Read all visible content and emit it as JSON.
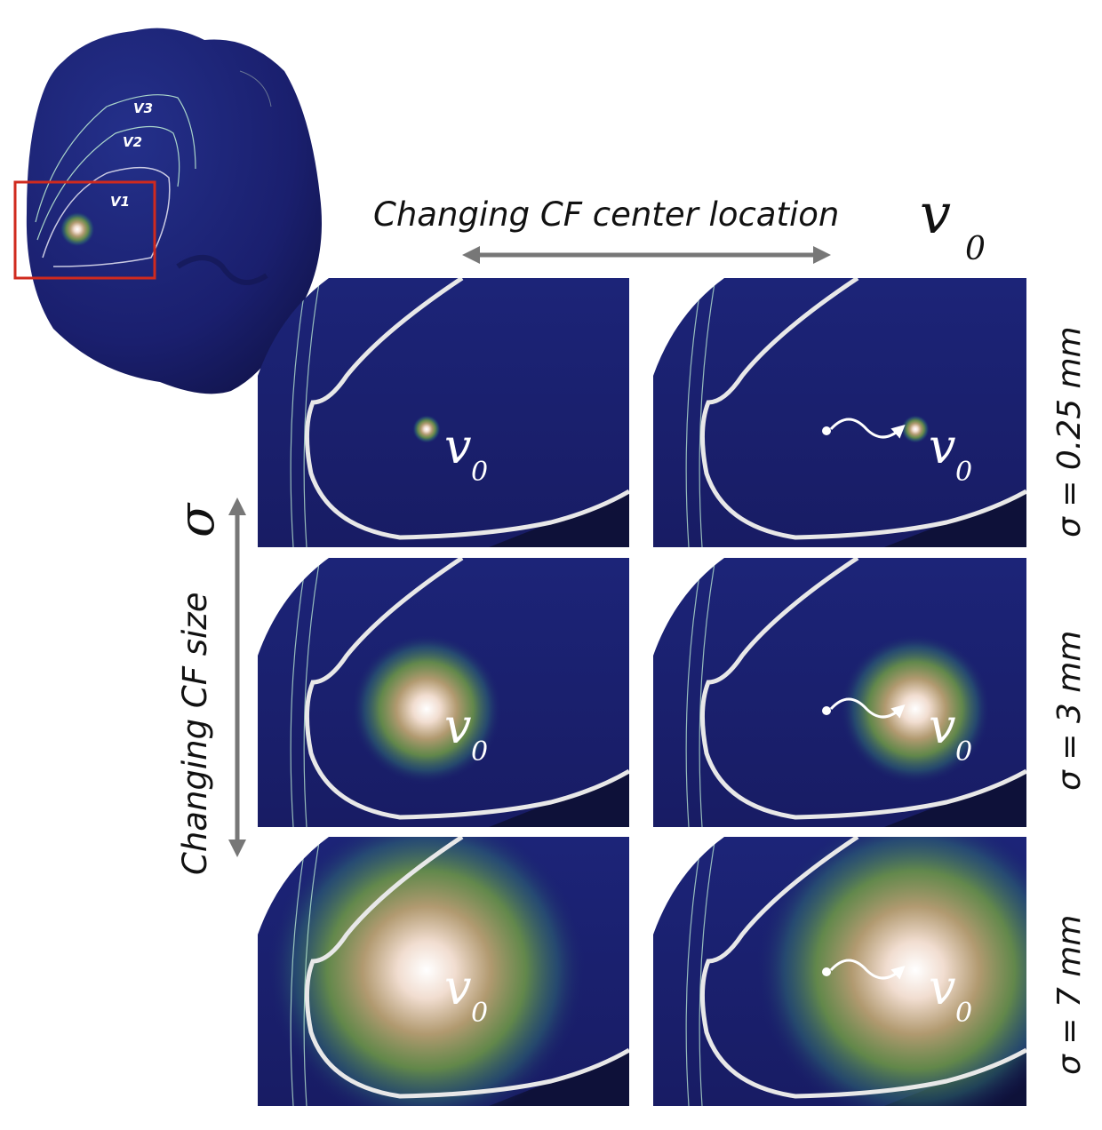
{
  "overview": {
    "areas": [
      {
        "id": "v3",
        "label": "V3"
      },
      {
        "id": "v2",
        "label": "V2"
      },
      {
        "id": "v1",
        "label": "V1"
      }
    ]
  },
  "top_axis": {
    "label": "Changing CF center location",
    "symbol": "v",
    "subscript": "0"
  },
  "left_axis": {
    "label": "Changing CF size",
    "symbol": "σ"
  },
  "rows": [
    {
      "sigma_label": "σ = 0.25 mm",
      "sigma_mm": 0.25
    },
    {
      "sigma_label": "σ = 3 mm",
      "sigma_mm": 3
    },
    {
      "sigma_label": "σ = 7 mm",
      "sigma_mm": 7
    }
  ],
  "panel_marker": {
    "symbol": "v",
    "subscript": "0"
  },
  "colors": {
    "cortex": "#1a1f6e",
    "boundary": "#e8e8e8",
    "roi_box": "#d02a1e",
    "arrow": "#777777"
  }
}
